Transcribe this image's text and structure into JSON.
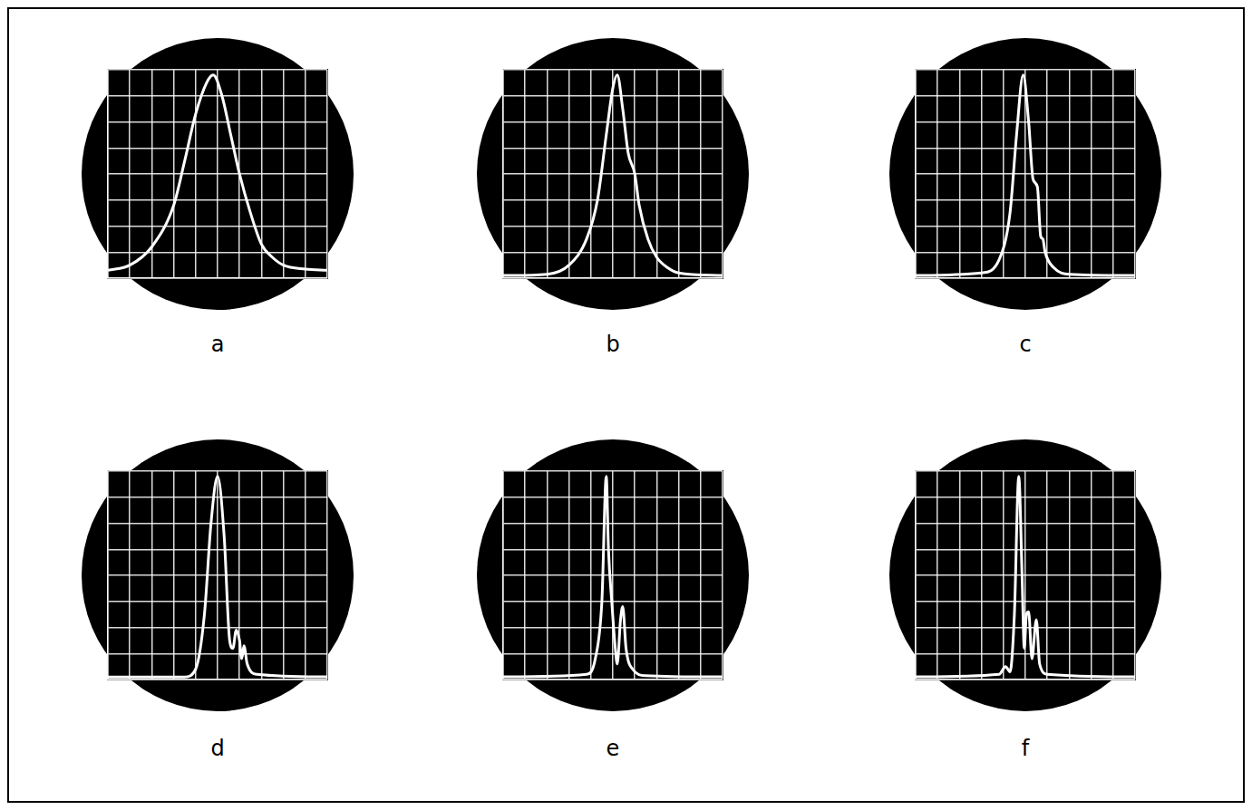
{
  "chart_data": [
    {
      "type": "line",
      "title": "a",
      "color": "#ffffff",
      "grid": true,
      "tick_labels": false,
      "xlim": [
        0,
        10
      ],
      "ylim": [
        0,
        8
      ],
      "xticks": [
        0,
        1,
        2,
        3,
        4,
        5,
        6,
        7,
        8,
        9,
        10
      ],
      "yticks": [
        0,
        1,
        2,
        3,
        4,
        5,
        6,
        7,
        8
      ],
      "x": [
        0,
        1,
        2,
        3,
        3.5,
        4,
        4.5,
        4.8,
        5.2,
        5.6,
        6,
        6.5,
        7,
        7.5,
        8,
        9,
        10
      ],
      "values": [
        0.3,
        0.5,
        1.2,
        2.8,
        4.5,
        6.3,
        7.5,
        7.8,
        7.0,
        5.5,
        4.0,
        2.5,
        1.3,
        0.8,
        0.5,
        0.35,
        0.3
      ]
    },
    {
      "type": "line",
      "title": "b",
      "color": "#ffffff",
      "grid": true,
      "tick_labels": false,
      "xlim": [
        0,
        10
      ],
      "ylim": [
        0,
        8
      ],
      "xticks": [
        0,
        1,
        2,
        3,
        4,
        5,
        6,
        7,
        8,
        9,
        10
      ],
      "yticks": [
        0,
        1,
        2,
        3,
        4,
        5,
        6,
        7,
        8
      ],
      "x": [
        0,
        2,
        3,
        3.8,
        4.3,
        4.7,
        5.0,
        5.2,
        5.45,
        5.7,
        6.0,
        6.2,
        6.6,
        7,
        7.5,
        8,
        10
      ],
      "values": [
        0.1,
        0.15,
        0.5,
        1.5,
        3.0,
        5.5,
        7.3,
        7.8,
        6.5,
        4.8,
        4.0,
        2.8,
        1.5,
        0.8,
        0.4,
        0.2,
        0.1
      ]
    },
    {
      "type": "line",
      "title": "c",
      "color": "#ffffff",
      "grid": true,
      "tick_labels": false,
      "xlim": [
        0,
        10
      ],
      "ylim": [
        0,
        8
      ],
      "xticks": [
        0,
        1,
        2,
        3,
        4,
        5,
        6,
        7,
        8,
        9,
        10
      ],
      "yticks": [
        0,
        1,
        2,
        3,
        4,
        5,
        6,
        7,
        8
      ],
      "x": [
        0,
        3,
        3.8,
        4.3,
        4.6,
        4.9,
        5.15,
        5.35,
        5.55,
        5.7,
        5.8,
        5.9,
        6.3,
        7,
        10
      ],
      "values": [
        0.1,
        0.2,
        0.7,
        2.5,
        5.5,
        7.8,
        6.0,
        3.8,
        3.5,
        1.6,
        1.5,
        1.0,
        0.4,
        0.15,
        0.1
      ]
    },
    {
      "type": "line",
      "title": "d",
      "color": "#ffffff",
      "grid": true,
      "tick_labels": false,
      "xlim": [
        0,
        10
      ],
      "ylim": [
        0,
        8
      ],
      "xticks": [
        0,
        1,
        2,
        3,
        4,
        5,
        6,
        7,
        8,
        9,
        10
      ],
      "yticks": [
        0,
        1,
        2,
        3,
        4,
        5,
        6,
        7,
        8
      ],
      "x": [
        0,
        3.5,
        4,
        4.4,
        4.7,
        5.0,
        5.3,
        5.55,
        5.7,
        5.85,
        6.0,
        6.1,
        6.2,
        6.35,
        6.8,
        10
      ],
      "values": [
        0.1,
        0.1,
        0.4,
        2.5,
        6.0,
        7.8,
        5.5,
        1.5,
        1.2,
        1.9,
        1.5,
        0.8,
        1.3,
        0.6,
        0.2,
        0.1
      ]
    },
    {
      "type": "line",
      "title": "e",
      "color": "#ffffff",
      "grid": true,
      "tick_labels": false,
      "xlim": [
        0,
        10
      ],
      "ylim": [
        0,
        8
      ],
      "xticks": [
        0,
        1,
        2,
        3,
        4,
        5,
        6,
        7,
        8,
        9,
        10
      ],
      "yticks": [
        0,
        1,
        2,
        3,
        4,
        5,
        6,
        7,
        8
      ],
      "x": [
        0,
        3.8,
        4.2,
        4.5,
        4.7,
        4.8,
        4.95,
        5.1,
        5.2,
        5.35,
        5.45,
        5.6,
        5.9,
        6.5,
        10
      ],
      "values": [
        0.1,
        0.2,
        0.8,
        3.0,
        7.8,
        5.0,
        3.0,
        1.3,
        0.6,
        2.3,
        2.8,
        1.2,
        0.4,
        0.15,
        0.1
      ]
    },
    {
      "type": "line",
      "title": "f",
      "color": "#ffffff",
      "grid": true,
      "tick_labels": false,
      "xlim": [
        0,
        10
      ],
      "ylim": [
        0,
        8
      ],
      "xticks": [
        0,
        1,
        2,
        3,
        4,
        5,
        6,
        7,
        8,
        9,
        10
      ],
      "yticks": [
        0,
        1,
        2,
        3,
        4,
        5,
        6,
        7,
        8
      ],
      "x": [
        0,
        3.8,
        4.1,
        4.3,
        4.5,
        4.7,
        4.85,
        4.95,
        5.05,
        5.15,
        5.3,
        5.5,
        5.65,
        6,
        10
      ],
      "values": [
        0.1,
        0.2,
        0.5,
        0.3,
        2.5,
        7.8,
        4.0,
        1.2,
        2.5,
        2.6,
        0.8,
        2.3,
        0.6,
        0.2,
        0.1
      ]
    }
  ]
}
